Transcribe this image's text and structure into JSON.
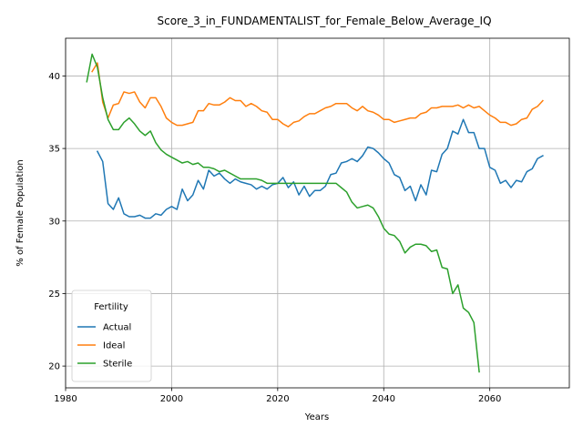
{
  "chart_data": {
    "type": "line",
    "title": "Score_3_in_FUNDAMENTALIST_for_Female_Below_Average_IQ",
    "xlabel": "Years",
    "ylabel": "% of Female Population",
    "xlim": [
      1980,
      2075
    ],
    "ylim": [
      18.5,
      42.6
    ],
    "xticks": [
      1980,
      2000,
      2020,
      2040,
      2060
    ],
    "yticks": [
      20,
      25,
      30,
      35,
      40
    ],
    "grid": true,
    "legend": {
      "title": "Fertility",
      "placement": "lower-left"
    },
    "series": [
      {
        "name": "Actual",
        "color": "#1f77b4",
        "x": [
          1986,
          1987,
          1988,
          1989,
          1990,
          1991,
          1992,
          1993,
          1994,
          1995,
          1996,
          1997,
          1998,
          1999,
          2000,
          2001,
          2002,
          2003,
          2004,
          2005,
          2006,
          2007,
          2008,
          2009,
          2010,
          2011,
          2012,
          2013,
          2014,
          2015,
          2016,
          2017,
          2018,
          2019,
          2020,
          2021,
          2022,
          2023,
          2024,
          2025,
          2026,
          2027,
          2028,
          2029,
          2030,
          2031,
          2032,
          2033,
          2034,
          2035,
          2036,
          2037,
          2038,
          2039,
          2040,
          2041,
          2042,
          2043,
          2044,
          2045,
          2046,
          2047,
          2048,
          2049,
          2050,
          2051,
          2052,
          2053,
          2054,
          2055,
          2056,
          2057,
          2058,
          2059,
          2060,
          2061,
          2062,
          2063,
          2064,
          2065,
          2066,
          2067,
          2068,
          2069,
          2070
        ],
        "y": [
          34.8,
          34.1,
          31.2,
          30.8,
          31.6,
          30.5,
          30.3,
          30.3,
          30.4,
          30.2,
          30.2,
          30.5,
          30.4,
          30.8,
          31.0,
          30.8,
          32.2,
          31.4,
          31.8,
          32.8,
          32.2,
          33.5,
          33.1,
          33.3,
          32.9,
          32.6,
          32.9,
          32.7,
          32.6,
          32.5,
          32.2,
          32.4,
          32.2,
          32.5,
          32.6,
          33.0,
          32.3,
          32.7,
          31.8,
          32.4,
          31.7,
          32.1,
          32.1,
          32.4,
          33.2,
          33.3,
          34.0,
          34.1,
          34.3,
          34.1,
          34.5,
          35.1,
          35.0,
          34.7,
          34.3,
          34.0,
          33.2,
          33.0,
          32.1,
          32.4,
          31.4,
          32.5,
          31.8,
          33.5,
          33.4,
          34.6,
          35.0,
          36.2,
          36.0,
          37.0,
          36.1,
          36.1,
          35.0,
          35.0,
          33.7,
          33.5,
          32.6,
          32.8,
          32.3,
          32.8,
          32.7,
          33.4,
          33.6,
          34.3,
          34.5
        ]
      },
      {
        "name": "Ideal",
        "color": "#ff7f0e",
        "x": [
          1985,
          1986,
          1987,
          1988,
          1989,
          1990,
          1991,
          1992,
          1993,
          1994,
          1995,
          1996,
          1997,
          1998,
          1999,
          2000,
          2001,
          2002,
          2003,
          2004,
          2005,
          2006,
          2007,
          2008,
          2009,
          2010,
          2011,
          2012,
          2013,
          2014,
          2015,
          2016,
          2017,
          2018,
          2019,
          2020,
          2021,
          2022,
          2023,
          2024,
          2025,
          2026,
          2027,
          2028,
          2029,
          2030,
          2031,
          2032,
          2033,
          2034,
          2035,
          2036,
          2037,
          2038,
          2039,
          2040,
          2041,
          2042,
          2043,
          2044,
          2045,
          2046,
          2047,
          2048,
          2049,
          2050,
          2051,
          2052,
          2053,
          2054,
          2055,
          2056,
          2057,
          2058,
          2059,
          2060,
          2061,
          2062,
          2063,
          2064,
          2065,
          2066,
          2067,
          2068,
          2069,
          2070
        ],
        "y": [
          40.3,
          40.9,
          38.2,
          37.1,
          38.0,
          38.1,
          38.9,
          38.8,
          38.9,
          38.2,
          37.8,
          38.5,
          38.5,
          37.9,
          37.1,
          36.8,
          36.6,
          36.6,
          36.7,
          36.8,
          37.6,
          37.6,
          38.1,
          38.0,
          38.0,
          38.2,
          38.5,
          38.3,
          38.3,
          37.9,
          38.1,
          37.9,
          37.6,
          37.5,
          37.0,
          37.0,
          36.7,
          36.5,
          36.8,
          36.9,
          37.2,
          37.4,
          37.4,
          37.6,
          37.8,
          37.9,
          38.1,
          38.1,
          38.1,
          37.8,
          37.6,
          37.9,
          37.6,
          37.5,
          37.3,
          37.0,
          37.0,
          36.8,
          36.9,
          37.0,
          37.1,
          37.1,
          37.4,
          37.5,
          37.8,
          37.8,
          37.9,
          37.9,
          37.9,
          38.0,
          37.8,
          38.0,
          37.8,
          37.9,
          37.6,
          37.3,
          37.1,
          36.8,
          36.8,
          36.6,
          36.7,
          37.0,
          37.1,
          37.7,
          37.9,
          38.3
        ]
      },
      {
        "name": "Sterile",
        "color": "#2ca02c",
        "x": [
          1984,
          1985,
          1986,
          1987,
          1988,
          1989,
          1990,
          1991,
          1992,
          1993,
          1994,
          1995,
          1996,
          1997,
          1998,
          1999,
          2000,
          2001,
          2002,
          2003,
          2004,
          2005,
          2006,
          2007,
          2008,
          2009,
          2010,
          2011,
          2012,
          2013,
          2014,
          2015,
          2016,
          2017,
          2018,
          2019,
          2020,
          2021,
          2022,
          2023,
          2024,
          2025,
          2026,
          2027,
          2028,
          2029,
          2030,
          2031,
          2032,
          2033,
          2034,
          2035,
          2036,
          2037,
          2038,
          2039,
          2040,
          2041,
          2042,
          2043,
          2044,
          2045,
          2046,
          2047,
          2048,
          2049,
          2050,
          2051,
          2052,
          2053,
          2054,
          2055,
          2056,
          2057,
          2058,
          2059
        ],
        "y": [
          39.6,
          41.5,
          40.6,
          38.5,
          37.0,
          36.3,
          36.3,
          36.8,
          37.1,
          36.7,
          36.2,
          35.9,
          36.2,
          35.4,
          34.9,
          34.6,
          34.4,
          34.2,
          34.0,
          34.1,
          33.9,
          34.0,
          33.7,
          33.7,
          33.6,
          33.4,
          33.5,
          33.3,
          33.1,
          32.9,
          32.9,
          32.9,
          32.9,
          32.8,
          32.6,
          32.6,
          32.6,
          32.6,
          32.6,
          32.6,
          32.6,
          32.6,
          32.6,
          32.6,
          32.6,
          32.6,
          32.6,
          32.6,
          32.3,
          32.0,
          31.3,
          30.9,
          31.0,
          31.1,
          30.9,
          30.3,
          29.5,
          29.1,
          29.0,
          28.6,
          27.8,
          28.2,
          28.4,
          28.4,
          28.3,
          27.9,
          28.0,
          26.8,
          26.7,
          25.0,
          25.6,
          24.0,
          23.7,
          23.0,
          19.6,
          null
        ]
      }
    ]
  }
}
